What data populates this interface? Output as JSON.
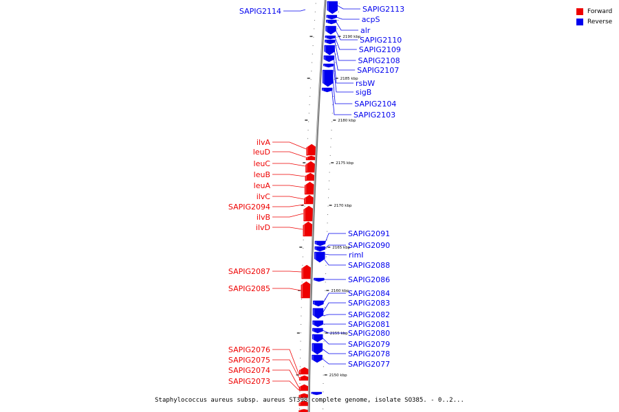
{
  "legend": {
    "forward": {
      "label": "Forward",
      "color": "#ee0000"
    },
    "reverse": {
      "label": "Reverse",
      "color": "#0000ee"
    }
  },
  "caption": "Staphylococcus aureus subsp. aureus ST398 complete genome, isolate SO385. - 0..2...",
  "scale_labels": [
    "2190 kbp",
    "2185 kbp",
    "2180 kbp",
    "2175 kbp",
    "2170 kbp",
    "2165 kbp",
    "2160 kbp",
    "2155 kbp",
    "2150 kbp"
  ],
  "forward_genes": [
    "ilvA",
    "leuD",
    "leuC",
    "leuB",
    "leuA",
    "ilvC",
    "SAPIG2094",
    "ilvB",
    "ilvD",
    "SAPIG2087",
    "SAPIG2085",
    "SAPIG2076",
    "SAPIG2075",
    "SAPIG2074",
    "SAPIG2073"
  ],
  "reverse_genes": [
    "SAPIG2113",
    "acpS",
    "alr",
    "SAPIG2110",
    "SAPIG2109",
    "SAPIG2108",
    "SAPIG2107",
    "rsbW",
    "sigB",
    "SAPIG2104",
    "SAPIG2103",
    "SAPIG2091",
    "SAPIG2090",
    "rimI",
    "SAPIG2088",
    "SAPIG2086",
    "SAPIG2084",
    "SAPIG2083",
    "SAPIG2082",
    "SAPIG2081",
    "SAPIG2080",
    "SAPIG2079",
    "SAPIG2078",
    "SAPIG2077"
  ],
  "other_labels": [
    "SAPIG2114"
  ]
}
